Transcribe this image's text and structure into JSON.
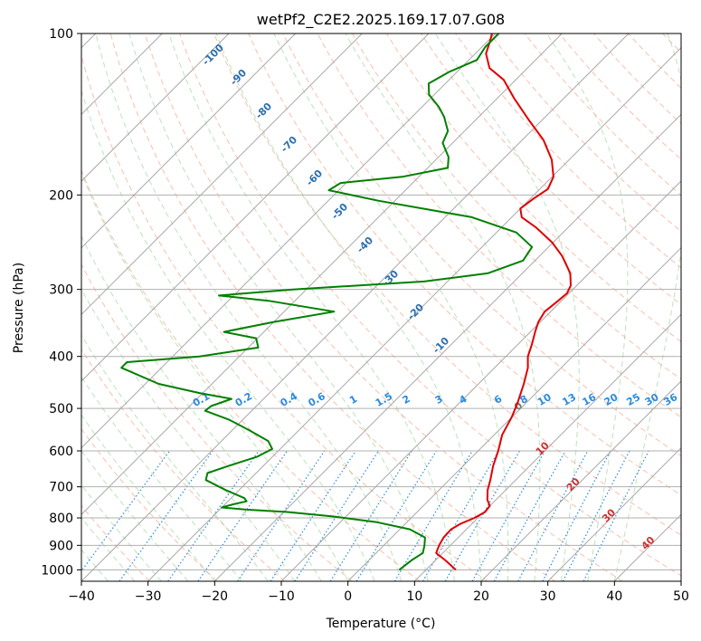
{
  "chart_data": {
    "type": "skew-t",
    "title": "wetPf2_C2E2.2025.169.17.07.G08",
    "xlabel": "Temperature (°C)",
    "ylabel": "Pressure (hPa)",
    "xlim": [
      -40,
      50
    ],
    "ylim": [
      1050,
      100
    ],
    "y_scale": "log",
    "grid": true,
    "x_ticks": [
      "−40",
      "−30",
      "−20",
      "−10",
      "0",
      "10",
      "20",
      "30",
      "40",
      "50"
    ],
    "y_ticks": [
      "100",
      "200",
      "300",
      "400",
      "500",
      "600",
      "700",
      "800",
      "900",
      "1000"
    ],
    "isotherm_labels": [
      {
        "value": "0",
        "pressure": 500
      },
      {
        "value": "10",
        "pressure": 600
      },
      {
        "value": "20",
        "pressure": 700
      },
      {
        "value": "30",
        "pressure": 800
      },
      {
        "value": "40",
        "pressure": 900
      }
    ],
    "moist_adiabat_labels": [
      "-100",
      "-90",
      "-80",
      "-70",
      "-60",
      "-50",
      "-40",
      "-30",
      "-20",
      "-10"
    ],
    "mixing_ratio_labels": [
      "0.1",
      "0.2",
      "0.4",
      "0.6",
      "1",
      "1.5",
      "2",
      "3",
      "4",
      "6",
      "8",
      "10",
      "13",
      "16",
      "20",
      "25",
      "30",
      "36"
    ],
    "colors": {
      "temperature": "#e00000",
      "dewpoint": "#008000",
      "isotherm_label": "#d03030",
      "moist_adiabat_label": "#2a6fb0",
      "mixing_ratio": "#2a8ae0"
    },
    "series": [
      {
        "name": "Temperature",
        "points": [
          {
            "p": 1000,
            "t": 14.5
          },
          {
            "p": 960,
            "t": 11.5
          },
          {
            "p": 930,
            "t": 9.0
          },
          {
            "p": 900,
            "t": 8.3
          },
          {
            "p": 870,
            "t": 7.8
          },
          {
            "p": 840,
            "t": 7.7
          },
          {
            "p": 820,
            "t": 8.3
          },
          {
            "p": 800,
            "t": 9.5
          },
          {
            "p": 780,
            "t": 10.2
          },
          {
            "p": 760,
            "t": 10.0
          },
          {
            "p": 740,
            "t": 8.7
          },
          {
            "p": 710,
            "t": 7.3
          },
          {
            "p": 680,
            "t": 6.2
          },
          {
            "p": 640,
            "t": 4.5
          },
          {
            "p": 600,
            "t": 3.0
          },
          {
            "p": 560,
            "t": 1.2
          },
          {
            "p": 520,
            "t": 0.0
          },
          {
            "p": 490,
            "t": -1.2
          },
          {
            "p": 450,
            "t": -3.2
          },
          {
            "p": 420,
            "t": -5.0
          },
          {
            "p": 400,
            "t": -6.7
          },
          {
            "p": 380,
            "t": -7.9
          },
          {
            "p": 360,
            "t": -9.3
          },
          {
            "p": 345,
            "t": -10.3
          },
          {
            "p": 330,
            "t": -10.9
          },
          {
            "p": 315,
            "t": -10.5
          },
          {
            "p": 305,
            "t": -10.3
          },
          {
            "p": 295,
            "t": -10.9
          },
          {
            "p": 280,
            "t": -12.8
          },
          {
            "p": 260,
            "t": -16.6
          },
          {
            "p": 245,
            "t": -20.2
          },
          {
            "p": 230,
            "t": -24.8
          },
          {
            "p": 220,
            "t": -28.5
          },
          {
            "p": 212,
            "t": -30.0
          },
          {
            "p": 203,
            "t": -29.5
          },
          {
            "p": 195,
            "t": -28.8
          },
          {
            "p": 185,
            "t": -29.8
          },
          {
            "p": 172,
            "t": -32.6
          },
          {
            "p": 158,
            "t": -36.8
          },
          {
            "p": 145,
            "t": -42.0
          },
          {
            "p": 132,
            "t": -47.5
          },
          {
            "p": 122,
            "t": -51.8
          },
          {
            "p": 116,
            "t": -55.7
          },
          {
            "p": 109,
            "t": -58.4
          },
          {
            "p": 104,
            "t": -59.5
          },
          {
            "p": 100,
            "t": -60.5
          }
        ]
      },
      {
        "name": "Dewpoint",
        "points": [
          {
            "p": 1000,
            "t": 6.0
          },
          {
            "p": 960,
            "t": 6.4
          },
          {
            "p": 930,
            "t": 7.0
          },
          {
            "p": 900,
            "t": 6.1
          },
          {
            "p": 870,
            "t": 5.0
          },
          {
            "p": 840,
            "t": 1.5
          },
          {
            "p": 815,
            "t": -4.5
          },
          {
            "p": 795,
            "t": -12.0
          },
          {
            "p": 780,
            "t": -19.5
          },
          {
            "p": 772,
            "t": -26.0
          },
          {
            "p": 765,
            "t": -30.0
          },
          {
            "p": 755,
            "t": -28.8
          },
          {
            "p": 745,
            "t": -27.2
          },
          {
            "p": 735,
            "t": -28.0
          },
          {
            "p": 710,
            "t": -32.0
          },
          {
            "p": 680,
            "t": -36.5
          },
          {
            "p": 660,
            "t": -37.3
          },
          {
            "p": 640,
            "t": -35.2
          },
          {
            "p": 615,
            "t": -32.3
          },
          {
            "p": 595,
            "t": -31.2
          },
          {
            "p": 575,
            "t": -33.0
          },
          {
            "p": 550,
            "t": -37.3
          },
          {
            "p": 525,
            "t": -42.0
          },
          {
            "p": 505,
            "t": -47.0
          },
          {
            "p": 495,
            "t": -46.8
          },
          {
            "p": 480,
            "t": -44.8
          },
          {
            "p": 468,
            "t": -50.5
          },
          {
            "p": 450,
            "t": -58.0
          },
          {
            "p": 420,
            "t": -66.0
          },
          {
            "p": 410,
            "t": -66.0
          },
          {
            "p": 400,
            "t": -56.0
          },
          {
            "p": 385,
            "t": -48.5
          },
          {
            "p": 370,
            "t": -50.2
          },
          {
            "p": 360,
            "t": -56.0
          },
          {
            "p": 345,
            "t": -50.0
          },
          {
            "p": 330,
            "t": -42.5
          },
          {
            "p": 315,
            "t": -54.0
          },
          {
            "p": 308,
            "t": -62.2
          },
          {
            "p": 300,
            "t": -52.0
          },
          {
            "p": 290,
            "t": -33.5
          },
          {
            "p": 280,
            "t": -25.2
          },
          {
            "p": 265,
            "t": -21.8
          },
          {
            "p": 250,
            "t": -22.5
          },
          {
            "p": 235,
            "t": -27.0
          },
          {
            "p": 220,
            "t": -36.0
          },
          {
            "p": 205,
            "t": -52.5
          },
          {
            "p": 196,
            "t": -61.5
          },
          {
            "p": 190,
            "t": -60.8
          },
          {
            "p": 185,
            "t": -52.5
          },
          {
            "p": 178,
            "t": -47.0
          },
          {
            "p": 170,
            "t": -48.5
          },
          {
            "p": 160,
            "t": -51.5
          },
          {
            "p": 152,
            "t": -52.5
          },
          {
            "p": 143,
            "t": -55.2
          },
          {
            "p": 137,
            "t": -57.5
          },
          {
            "p": 130,
            "t": -60.8
          },
          {
            "p": 124,
            "t": -62.5
          },
          {
            "p": 118,
            "t": -61.2
          },
          {
            "p": 112,
            "t": -58.8
          },
          {
            "p": 106,
            "t": -59.5
          },
          {
            "p": 100,
            "t": -59.5
          }
        ]
      }
    ]
  }
}
